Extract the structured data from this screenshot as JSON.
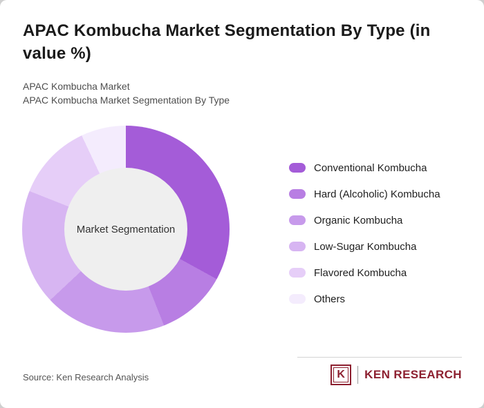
{
  "title": "APAC Kombucha Market Segmentation By Type (in value %)",
  "subtitle_line1": "APAC Kombucha Market",
  "subtitle_line2": "APAC Kombucha Market Segmentation By Type",
  "chart_data": {
    "type": "pie",
    "donut": true,
    "title": "APAC Kombucha Market Segmentation By Type (in value %)",
    "center_label": "Market Segmentation",
    "legend_position": "right",
    "categories": [
      "Conventional Kombucha",
      "Hard (Alcoholic) Kombucha",
      "Organic Kombucha",
      "Low-Sugar Kombucha",
      "Flavored Kombucha",
      "Others"
    ],
    "values": [
      33,
      11,
      19,
      18,
      12,
      7
    ],
    "colors": [
      "#a45cd8",
      "#b87ee3",
      "#c79aeb",
      "#d7b5f2",
      "#e6cef8",
      "#f4ecfd"
    ],
    "hole_color": "#efefef",
    "start_angle_deg": 0
  },
  "footer": {
    "source": "Source: Ken Research Analysis",
    "logo_letter": "K",
    "logo_text": "KEN RESEARCH"
  }
}
